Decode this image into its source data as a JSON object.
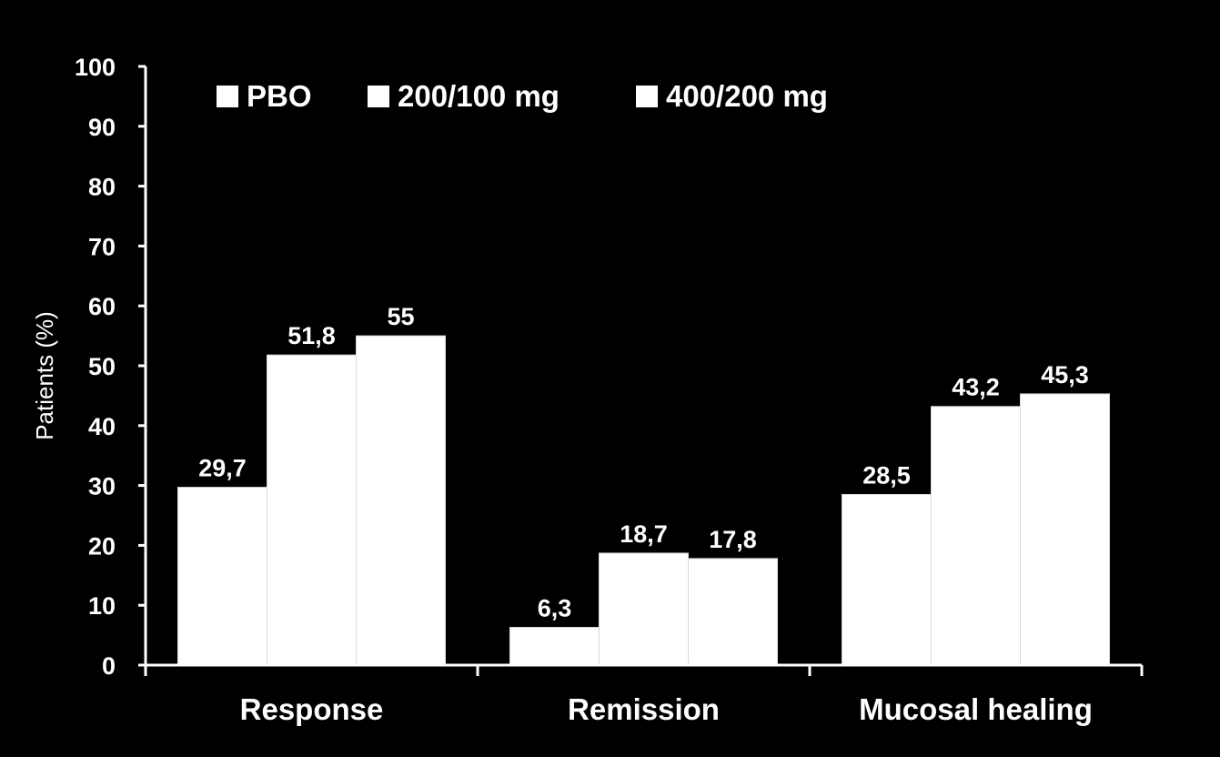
{
  "chart_data": {
    "type": "bar",
    "title": "",
    "xlabel": "",
    "ylabel": "Patients (%)",
    "ylim": [
      0,
      100
    ],
    "yticks": [
      0,
      10,
      20,
      30,
      40,
      50,
      60,
      70,
      80,
      90,
      100
    ],
    "categories": [
      "Response",
      "Remission",
      "Mucosal healing"
    ],
    "series": [
      {
        "name": "PBO",
        "values": [
          29.7,
          6.3,
          28.5
        ],
        "labels": [
          "29,7",
          "6,3",
          "28,5"
        ],
        "color": "#ffffff"
      },
      {
        "name": "200/100 mg",
        "values": [
          51.8,
          18.7,
          43.2
        ],
        "labels": [
          "51,8",
          "18,7",
          "43,2"
        ],
        "color": "#ffffff"
      },
      {
        "name": "400/200 mg",
        "values": [
          55,
          17.8,
          45.3
        ],
        "labels": [
          "55",
          "17,8",
          "45,3"
        ],
        "color": "#ffffff"
      }
    ],
    "grid": false,
    "legend_position": "top",
    "background_color": "#000000",
    "text_color": "#ffffff"
  }
}
